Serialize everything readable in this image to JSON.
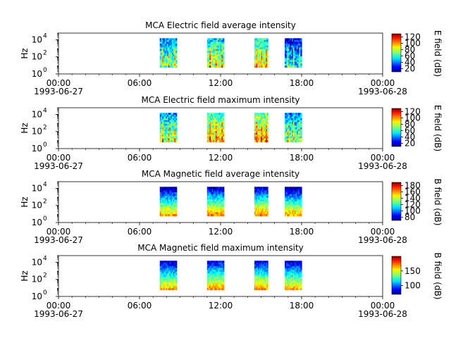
{
  "chart_data": [
    {
      "type": "heatmap",
      "title": "MCA  Electric field average intensity",
      "ylabel": "Hz",
      "colorbar_label": "E field (dB)",
      "colorbar_ticks": [
        20,
        40,
        60,
        80,
        100,
        120
      ],
      "colorbar_range": [
        10,
        130
      ],
      "y_scale": "log",
      "y_ticks": [
        {
          "exp": "0"
        },
        {
          "exp": "2"
        },
        {
          "exp": "4"
        }
      ],
      "ylim": [
        1,
        60000
      ],
      "x_ticks": [
        "00:00",
        "06:00",
        "12:00",
        "18:00",
        "00:00"
      ],
      "x_dates": [
        "1993-06-27",
        "",
        "",
        "",
        "1993-06-28"
      ],
      "xlim_hours": [
        0,
        24
      ],
      "data_blocks": [
        {
          "start": "07:30",
          "end": "08:45",
          "high_freq": 15000,
          "low_freq": 6,
          "level": 55
        },
        {
          "start": "11:00",
          "end": "12:15",
          "high_freq": 15000,
          "low_freq": 6,
          "level": 65
        },
        {
          "start": "14:30",
          "end": "15:30",
          "high_freq": 15000,
          "low_freq": 6,
          "level": 70
        },
        {
          "start": "16:45",
          "end": "18:00",
          "high_freq": 15000,
          "low_freq": 6,
          "level": 40
        }
      ]
    },
    {
      "type": "heatmap",
      "title": "MCA  Electric field maximum intensity",
      "ylabel": "Hz",
      "colorbar_label": "E field (dB)",
      "colorbar_ticks": [
        20,
        40,
        60,
        80,
        100,
        120
      ],
      "colorbar_range": [
        10,
        130
      ],
      "y_scale": "log",
      "y_ticks": [
        {
          "exp": "0"
        },
        {
          "exp": "2"
        },
        {
          "exp": "4"
        }
      ],
      "ylim": [
        1,
        60000
      ],
      "x_ticks": [
        "00:00",
        "06:00",
        "12:00",
        "18:00",
        "00:00"
      ],
      "x_dates": [
        "1993-06-27",
        "",
        "",
        "",
        "1993-06-28"
      ],
      "xlim_hours": [
        0,
        24
      ],
      "data_blocks": [
        {
          "start": "07:30",
          "end": "08:45",
          "high_freq": 15000,
          "low_freq": 6,
          "level": 60
        },
        {
          "start": "11:00",
          "end": "12:15",
          "high_freq": 15000,
          "low_freq": 6,
          "level": 75
        },
        {
          "start": "14:30",
          "end": "15:30",
          "high_freq": 15000,
          "low_freq": 6,
          "level": 80
        },
        {
          "start": "16:45",
          "end": "18:00",
          "high_freq": 15000,
          "low_freq": 6,
          "level": 55
        }
      ]
    },
    {
      "type": "heatmap",
      "title": "MCA  Magnetic field average intensity",
      "ylabel": "Hz",
      "colorbar_label": "B field (dB)",
      "colorbar_ticks": [
        80,
        100,
        120,
        140,
        160,
        180
      ],
      "colorbar_range": [
        70,
        190
      ],
      "y_scale": "log",
      "y_ticks": [
        {
          "exp": "0"
        },
        {
          "exp": "2"
        },
        {
          "exp": "4"
        }
      ],
      "ylim": [
        1,
        60000
      ],
      "x_ticks": [
        "00:00",
        "06:00",
        "12:00",
        "18:00",
        "00:00"
      ],
      "x_dates": [
        "1993-06-27",
        "",
        "",
        "",
        "1993-06-28"
      ],
      "xlim_hours": [
        0,
        24
      ],
      "data_blocks": [
        {
          "start": "07:30",
          "end": "08:45",
          "high_freq": 15000,
          "low_freq": 6,
          "level": 120
        },
        {
          "start": "11:00",
          "end": "12:15",
          "high_freq": 15000,
          "low_freq": 6,
          "level": 125
        },
        {
          "start": "14:30",
          "end": "15:30",
          "high_freq": 15000,
          "low_freq": 6,
          "level": 125
        },
        {
          "start": "16:45",
          "end": "18:00",
          "high_freq": 15000,
          "low_freq": 6,
          "level": 120
        }
      ]
    },
    {
      "type": "heatmap",
      "title": "MCA  Magnetic field maximum intensity",
      "ylabel": "Hz",
      "colorbar_label": "B field (dB)",
      "colorbar_ticks": [
        100,
        150
      ],
      "colorbar_range": [
        70,
        200
      ],
      "y_scale": "log",
      "y_ticks": [
        {
          "exp": "0"
        },
        {
          "exp": "2"
        },
        {
          "exp": "4"
        }
      ],
      "ylim": [
        1,
        60000
      ],
      "x_ticks": [
        "00:00",
        "06:00",
        "12:00",
        "18:00",
        "00:00"
      ],
      "x_dates": [
        "1993-06-27",
        "",
        "",
        "",
        "1993-06-28"
      ],
      "xlim_hours": [
        0,
        24
      ],
      "data_blocks": [
        {
          "start": "07:30",
          "end": "08:45",
          "high_freq": 15000,
          "low_freq": 6,
          "level": 125
        },
        {
          "start": "11:00",
          "end": "12:15",
          "high_freq": 15000,
          "low_freq": 6,
          "level": 130
        },
        {
          "start": "14:30",
          "end": "15:30",
          "high_freq": 15000,
          "low_freq": 6,
          "level": 130
        },
        {
          "start": "16:45",
          "end": "18:00",
          "high_freq": 15000,
          "low_freq": 6,
          "level": 125
        }
      ]
    }
  ]
}
